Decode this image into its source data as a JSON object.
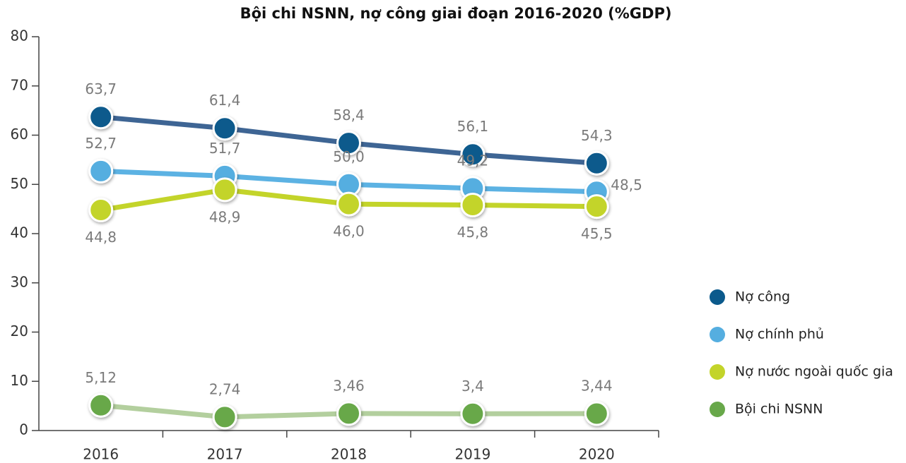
{
  "chart_data": {
    "type": "line",
    "title": "Bội chi NSNN, nợ công giai đoạn 2016-2020 (%GDP)",
    "categories": [
      "2016",
      "2017",
      "2018",
      "2019",
      "2020"
    ],
    "series": [
      {
        "name": "Nợ công",
        "color": "#0b5a8c",
        "line_color": "#3e6594",
        "values": [
          63.7,
          61.4,
          58.4,
          56.1,
          54.3
        ],
        "value_labels": [
          "63,7",
          "61,4",
          "58,4",
          "56,1",
          "54,3"
        ],
        "label_position": "above"
      },
      {
        "name": "Nợ chính phủ",
        "color": "#55aee0",
        "line_color": "#5cb2e3",
        "values": [
          52.7,
          51.7,
          50.0,
          49.2,
          48.5
        ],
        "value_labels": [
          "52,7",
          "51,7",
          "50,0",
          "49,2",
          "48,5"
        ],
        "label_position": "above"
      },
      {
        "name": "Nợ nước ngoài quốc gia",
        "color": "#c3d42a",
        "line_color": "#c3d42a",
        "values": [
          44.8,
          48.9,
          46.0,
          45.8,
          45.5
        ],
        "value_labels": [
          "44,8",
          "48,9",
          "46,0",
          "45,8",
          "45,5"
        ],
        "label_position": "below"
      },
      {
        "name": "Bội chi NSNN",
        "color": "#68a84a",
        "line_color": "#b3cf9e",
        "values": [
          5.12,
          2.74,
          3.46,
          3.4,
          3.44
        ],
        "value_labels": [
          "5,12",
          "2,74",
          "3,46",
          "3,4",
          "3,44"
        ],
        "label_position": "above"
      }
    ],
    "ylim": [
      0,
      80
    ],
    "yticks": [
      0,
      10,
      20,
      30,
      40,
      50,
      60,
      70,
      80
    ],
    "legend": "right"
  }
}
